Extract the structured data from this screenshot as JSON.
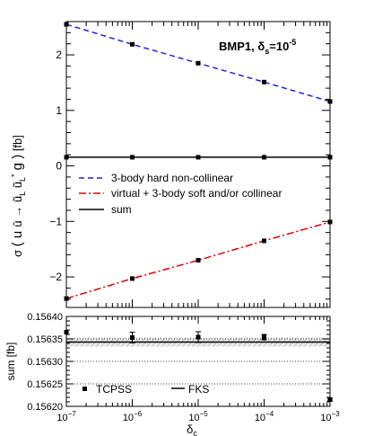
{
  "chart_data": [
    {
      "type": "line",
      "annotation": "BMP1, δs=10⁻⁵",
      "ylabel": "σ ( u ū → ũL ũL* g ) [fb]",
      "x_scale": "log",
      "xlim": [
        1e-07,
        0.001
      ],
      "ylim": [
        -2.55,
        2.6
      ],
      "yticks": [
        -2,
        -1,
        0,
        1,
        2
      ],
      "ytick_labels": [
        "−2",
        "−1",
        "0",
        "1",
        "2"
      ],
      "legend_position": "middle-right",
      "series": [
        {
          "name": "3-body hard non-collinear",
          "color": "#1f1fe0",
          "style": "dashed",
          "x": [
            1e-07,
            1e-06,
            1e-05,
            0.0001,
            0.001
          ],
          "values": [
            2.55,
            2.19,
            1.85,
            1.51,
            1.16
          ]
        },
        {
          "name": "virtual + 3-body soft and/or collinear",
          "color": "#e00000",
          "style": "dash-dot",
          "x": [
            1e-07,
            1e-06,
            1e-05,
            0.0001,
            0.001
          ],
          "values": [
            -2.39,
            -2.03,
            -1.7,
            -1.35,
            -1.01
          ]
        },
        {
          "name": "sum",
          "color": "#000000",
          "style": "solid",
          "x": [
            1e-07,
            1e-06,
            1e-05,
            0.0001,
            0.001
          ],
          "values": [
            0.156,
            0.156,
            0.156,
            0.156,
            0.156
          ]
        }
      ]
    },
    {
      "type": "scatter",
      "xlabel": "δc",
      "ylabel": "sum [fb]",
      "x_scale": "log",
      "xlim": [
        1e-07,
        0.001
      ],
      "ylim": [
        0.1562,
        0.1564
      ],
      "yticks": [
        0.1562,
        0.15625,
        0.1563,
        0.15635,
        0.1564
      ],
      "ytick_labels": [
        "0.15620",
        "0.15625",
        "0.15630",
        "0.15635",
        "0.15640"
      ],
      "xtick_labels": [
        "10⁻⁷",
        "10⁻⁶",
        "10⁻⁵",
        "10⁻⁴",
        "10⁻³"
      ],
      "xtick_base": "10",
      "xtick_exponents": [
        "−7",
        "−6",
        "−5",
        "−4",
        "−3"
      ],
      "legend_position": "bottom",
      "fks": {
        "name": "FKS",
        "value": 0.156343,
        "band": [
          0.156333,
          0.156353
        ]
      },
      "series": [
        {
          "name": "TCPSS",
          "x": [
            1e-07,
            1e-06,
            1e-05,
            0.0001,
            0.001
          ],
          "values": [
            0.156365,
            0.156353,
            0.156354,
            0.156354,
            0.156215
          ],
          "errors": [
            0.0,
            1.2e-05,
            1.2e-05,
            6e-06,
            3e-06
          ]
        }
      ]
    }
  ]
}
